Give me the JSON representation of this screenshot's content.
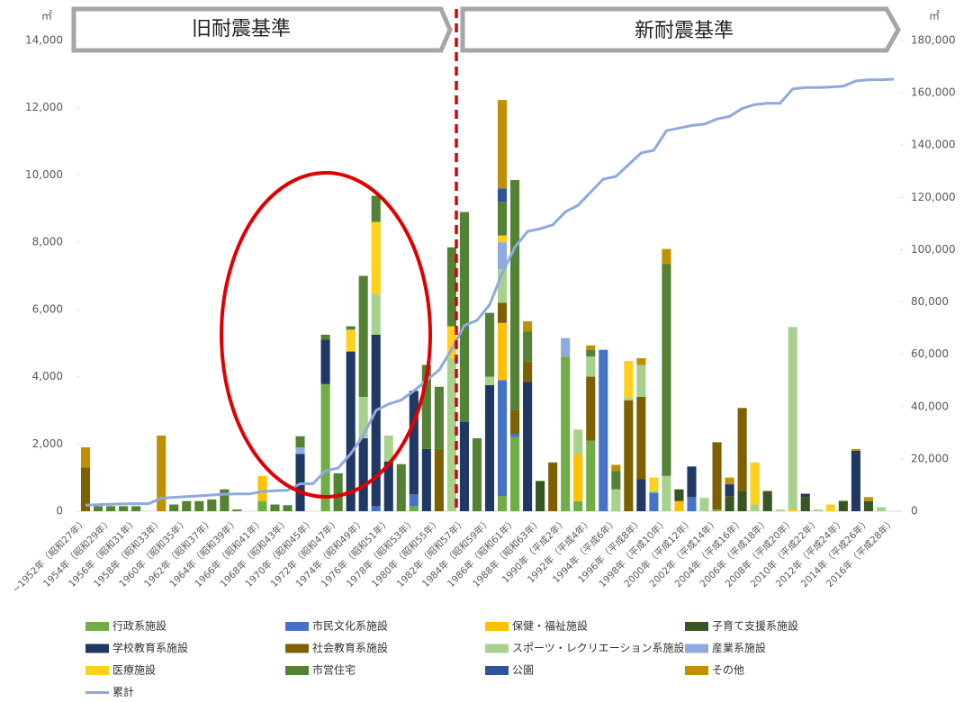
{
  "chart_data": {
    "type": "bar",
    "stacked": true,
    "annotations": [
      "旧耐震基準",
      "新耐震基準"
    ],
    "y_unit": "㎡",
    "y2_unit": "㎡",
    "categories": [
      "~1952年（昭和27年）",
      null,
      "1954年（昭和29年）",
      null,
      "1956年（昭和31年）",
      null,
      "1958年（昭和33年）",
      null,
      "1960年（昭和35年）",
      null,
      "1962年（昭和37年）",
      null,
      "1964年（昭和39年）",
      null,
      "1966年（昭和41年）",
      null,
      "1968年（昭和43年）",
      null,
      "1970年（昭和45年）",
      null,
      "1972年（昭和47年）",
      null,
      "1974年（昭和49年）",
      null,
      "1976年（昭和51年）",
      null,
      "1978年（昭和53年）",
      null,
      "1980年（昭和55年）",
      null,
      "1982年（昭和57年）",
      null,
      "1984年（昭和59年）",
      null,
      "1986年（昭和61年）",
      null,
      "1988年（昭和63年）",
      null,
      "1990年（平成2年）",
      null,
      "1992年（平成4年）",
      null,
      "1994年（平成6年）",
      null,
      "1996年（平成8年）",
      null,
      "1998年（平成10年）",
      null,
      "2000年（平成12年）",
      null,
      "2002年（平成14年）",
      null,
      "2004年（平成16年）",
      null,
      "2006年（平成18年）",
      null,
      "2008年（平成20年）",
      null,
      "2010年（平成22年）",
      null,
      "2012年（平成24年）",
      null,
      "2014年（平成26年）",
      null,
      "2016年（平成28年）"
    ],
    "series": [
      {
        "name": "行政系施設",
        "color": "#70ad47",
        "values": [
          0,
          0,
          0,
          0,
          0,
          0,
          0,
          0,
          0,
          0,
          0,
          0,
          0,
          0,
          300,
          0,
          0,
          0,
          0,
          3780,
          0,
          0,
          0,
          0,
          0,
          0,
          150,
          0,
          0,
          0,
          0,
          0,
          0,
          450,
          2200,
          0,
          0,
          0,
          4600,
          300,
          2100,
          0,
          0,
          0,
          0,
          0,
          0,
          0,
          0,
          0,
          50,
          0,
          0,
          0,
          0,
          0,
          0,
          0,
          0,
          0,
          0,
          0,
          0,
          0,
          0
        ]
      },
      {
        "name": "市民文化系施設",
        "color": "#4472c4",
        "values": [
          0,
          0,
          0,
          0,
          0,
          0,
          0,
          0,
          0,
          0,
          0,
          0,
          0,
          0,
          0,
          0,
          0,
          0,
          0,
          0,
          0,
          0,
          0,
          150,
          0,
          0,
          350,
          0,
          0,
          0,
          0,
          0,
          0,
          3450,
          100,
          0,
          0,
          0,
          0,
          0,
          0,
          4800,
          0,
          0,
          0,
          550,
          0,
          0,
          420,
          0,
          0,
          0,
          0,
          0,
          0,
          0,
          0,
          0,
          0,
          0,
          0,
          0,
          0,
          0,
          0
        ]
      },
      {
        "name": "保健・福祉施設",
        "color": "#ffc000",
        "values": [
          0,
          0,
          0,
          0,
          0,
          0,
          0,
          0,
          0,
          0,
          0,
          0,
          0,
          0,
          750,
          0,
          0,
          0,
          0,
          0,
          0,
          0,
          0,
          0,
          0,
          0,
          0,
          0,
          0,
          0,
          0,
          0,
          0,
          1700,
          0,
          0,
          0,
          0,
          0,
          1400,
          0,
          0,
          0,
          0,
          0,
          0,
          0,
          300,
          0,
          0,
          0,
          0,
          0,
          0,
          0,
          0,
          50,
          0,
          0,
          0,
          0,
          0,
          0,
          0,
          0
        ]
      },
      {
        "name": "子育て支援系施設",
        "color": "#375623",
        "values": [
          0,
          0,
          0,
          0,
          0,
          0,
          0,
          0,
          0,
          0,
          0,
          0,
          0,
          0,
          0,
          0,
          0,
          0,
          0,
          0,
          0,
          0,
          0,
          0,
          0,
          0,
          0,
          0,
          0,
          0,
          0,
          0,
          0,
          0,
          0,
          0,
          900,
          0,
          0,
          0,
          0,
          0,
          0,
          0,
          0,
          0,
          0,
          350,
          0,
          0,
          0,
          450,
          600,
          0,
          600,
          0,
          0,
          420,
          0,
          0,
          300,
          0,
          300,
          0,
          0
        ]
      },
      {
        "name": "学校教育系施設",
        "color": "#203864",
        "values": [
          0,
          0,
          0,
          0,
          0,
          0,
          0,
          0,
          0,
          0,
          0,
          0,
          0,
          0,
          0,
          0,
          0,
          1700,
          0,
          1320,
          0,
          4750,
          2170,
          5100,
          1480,
          0,
          3080,
          1850,
          0,
          0,
          2650,
          0,
          3750,
          0,
          0,
          3850,
          0,
          0,
          0,
          0,
          0,
          0,
          0,
          0,
          950,
          0,
          0,
          0,
          910,
          0,
          0,
          350,
          0,
          0,
          0,
          0,
          0,
          100,
          0,
          0,
          0,
          1800,
          0,
          0,
          0
        ]
      },
      {
        "name": "社会教育系施設",
        "color": "#7f6000",
        "values": [
          1300,
          0,
          0,
          0,
          0,
          0,
          0,
          0,
          0,
          0,
          0,
          0,
          0,
          0,
          0,
          0,
          0,
          0,
          0,
          0,
          0,
          0,
          0,
          0,
          0,
          0,
          0,
          0,
          1850,
          0,
          0,
          0,
          0,
          600,
          700,
          600,
          0,
          1450,
          0,
          0,
          1900,
          0,
          0,
          3300,
          2450,
          0,
          0,
          0,
          0,
          0,
          2000,
          0,
          2470,
          0,
          0,
          0,
          0,
          0,
          0,
          0,
          0,
          0,
          0,
          0,
          0
        ]
      },
      {
        "name": "スポーツ・レクリエーション系施設",
        "color": "#a9d18e",
        "values": [
          0,
          0,
          0,
          0,
          0,
          0,
          0,
          0,
          0,
          0,
          0,
          0,
          0,
          0,
          0,
          0,
          0,
          0,
          0,
          0,
          0,
          0,
          1230,
          1200,
          770,
          0,
          0,
          0,
          0,
          4550,
          0,
          0,
          250,
          1000,
          0,
          0,
          0,
          0,
          0,
          730,
          600,
          0,
          650,
          70,
          950,
          50,
          1050,
          0,
          0,
          400,
          0,
          0,
          0,
          200,
          0,
          50,
          5430,
          0,
          50,
          0,
          30,
          0,
          0,
          120,
          0
        ]
      },
      {
        "name": "産業系施設",
        "color": "#8faadc",
        "values": [
          0,
          0,
          0,
          0,
          0,
          0,
          0,
          0,
          0,
          0,
          0,
          0,
          0,
          0,
          0,
          0,
          0,
          200,
          0,
          0,
          0,
          0,
          0,
          0,
          0,
          0,
          0,
          0,
          0,
          0,
          0,
          0,
          0,
          800,
          0,
          0,
          0,
          0,
          550,
          0,
          0,
          0,
          0,
          0,
          0,
          0,
          0,
          0,
          0,
          0,
          0,
          0,
          0,
          0,
          0,
          0,
          0,
          0,
          0,
          0,
          0,
          0,
          0,
          0,
          0
        ]
      },
      {
        "name": "医療施設",
        "color": "#ffd11a",
        "values": [
          0,
          0,
          0,
          0,
          0,
          0,
          0,
          0,
          0,
          0,
          0,
          0,
          0,
          0,
          0,
          0,
          0,
          0,
          0,
          0,
          0,
          650,
          0,
          2150,
          0,
          0,
          0,
          0,
          0,
          950,
          0,
          0,
          0,
          200,
          0,
          0,
          0,
          0,
          0,
          0,
          0,
          0,
          0,
          1100,
          0,
          400,
          0,
          0,
          0,
          0,
          0,
          0,
          0,
          1250,
          0,
          0,
          0,
          0,
          0,
          200,
          0,
          0,
          0,
          0,
          0
        ]
      },
      {
        "name": "市営住宅",
        "color": "#548235",
        "values": [
          0,
          150,
          150,
          150,
          150,
          0,
          0,
          200,
          300,
          300,
          350,
          650,
          50,
          0,
          0,
          200,
          180,
          330,
          0,
          150,
          1130,
          100,
          3600,
          780,
          0,
          1400,
          0,
          2500,
          1850,
          2350,
          6250,
          2170,
          1900,
          1000,
          6850,
          900,
          0,
          0,
          0,
          0,
          200,
          0,
          550,
          0,
          0,
          0,
          6300,
          0,
          0,
          0,
          0,
          0,
          0,
          0,
          0,
          0,
          0,
          0,
          0,
          0,
          0,
          0,
          0,
          0,
          0
        ]
      },
      {
        "name": "公園",
        "color": "#2f5597",
        "values": [
          0,
          0,
          0,
          0,
          0,
          0,
          0,
          0,
          0,
          0,
          0,
          0,
          0,
          0,
          0,
          0,
          0,
          0,
          0,
          0,
          0,
          0,
          0,
          0,
          0,
          0,
          0,
          0,
          0,
          0,
          0,
          0,
          0,
          400,
          0,
          0,
          0,
          0,
          0,
          0,
          0,
          0,
          0,
          0,
          0,
          0,
          0,
          0,
          0,
          0,
          0,
          0,
          0,
          0,
          0,
          0,
          0,
          0,
          0,
          0,
          0,
          0,
          0,
          0,
          0
        ]
      },
      {
        "name": "その他",
        "color": "#bf9000",
        "values": [
          600,
          0,
          0,
          0,
          0,
          0,
          2250,
          0,
          0,
          0,
          0,
          0,
          0,
          0,
          0,
          0,
          0,
          0,
          0,
          0,
          0,
          0,
          0,
          0,
          0,
          0,
          0,
          0,
          0,
          0,
          0,
          0,
          0,
          2630,
          0,
          300,
          0,
          0,
          0,
          0,
          130,
          0,
          180,
          0,
          200,
          0,
          450,
          0,
          0,
          0,
          0,
          200,
          0,
          0,
          0,
          0,
          0,
          0,
          0,
          0,
          0,
          50,
          120,
          0,
          0
        ]
      },
      {
        "name": "累計",
        "color": "#8eaadb",
        "type": "line",
        "axis": "y2",
        "values": [
          2300,
          2500,
          2700,
          2800,
          2900,
          2900,
          5000,
          5300,
          5600,
          5900,
          6200,
          6500,
          6600,
          6600,
          7500,
          7800,
          8000,
          10500,
          10500,
          15500,
          16500,
          22000,
          29000,
          38500,
          41000,
          42500,
          46000,
          50000,
          54000,
          62000,
          71000,
          73000,
          79000,
          91000,
          101000,
          107000,
          108000,
          109500,
          114500,
          117000,
          122000,
          127000,
          128000,
          132500,
          137000,
          138000,
          145500,
          146500,
          147500,
          148000,
          150000,
          151000,
          154000,
          155500,
          156000,
          156000,
          161500,
          162000,
          162000,
          162200,
          162500,
          164500,
          165000,
          165000,
          165200
        ]
      }
    ],
    "ylim": [
      0,
      14000
    ],
    "yticks": [
      0,
      {
        "value": 2000,
        "label": "2,000"
      },
      {
        "value": 4000,
        "label": "4,000"
      },
      {
        "value": 6000,
        "label": "6,000"
      },
      {
        "value": 8000,
        "label": "8,000"
      },
      {
        "value": 10000,
        "label": "10,000"
      },
      {
        "value": 12000,
        "label": "12,000"
      },
      {
        "value": 14000,
        "label": "14,000"
      }
    ],
    "y2lim": [
      0,
      180000
    ],
    "y2ticks": [
      0,
      {
        "value": 20000,
        "label": "20,000"
      },
      {
        "value": 40000,
        "label": "40,000"
      },
      {
        "value": 60000,
        "label": "60,000"
      },
      {
        "value": 80000,
        "label": "80,000"
      },
      {
        "value": 100000,
        "label": "100,000"
      },
      {
        "value": 120000,
        "label": "120,000"
      },
      {
        "value": 140000,
        "label": "140,000"
      },
      {
        "value": 160000,
        "label": "160,000"
      },
      {
        "value": 180000,
        "label": "180,000"
      }
    ],
    "grid": false
  }
}
